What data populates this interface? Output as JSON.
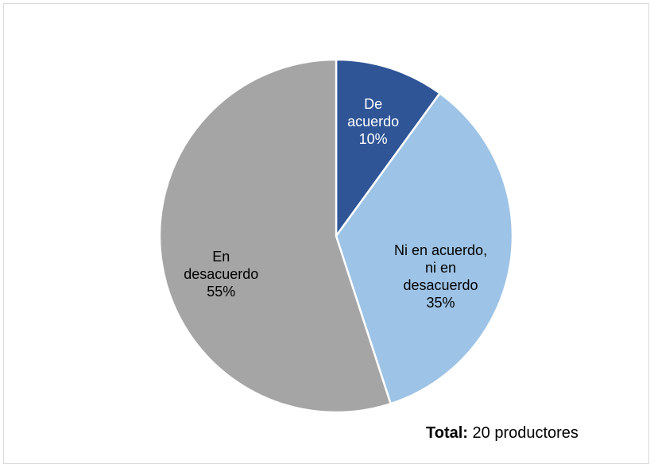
{
  "chart_data": {
    "type": "pie",
    "categories": [
      "De acuerdo",
      "Ni en acuerdo, ni en desacuerdo",
      "En desacuerdo"
    ],
    "values": [
      10,
      35,
      55
    ],
    "value_labels": [
      "10%",
      "35%",
      "55%"
    ],
    "colors": [
      "#2f5597",
      "#9dc3e6",
      "#a5a5a5"
    ],
    "label_colors": [
      "#ffffff",
      "#000000",
      "#000000"
    ],
    "note": {
      "label": "Total:",
      "text": "20 productores"
    }
  }
}
